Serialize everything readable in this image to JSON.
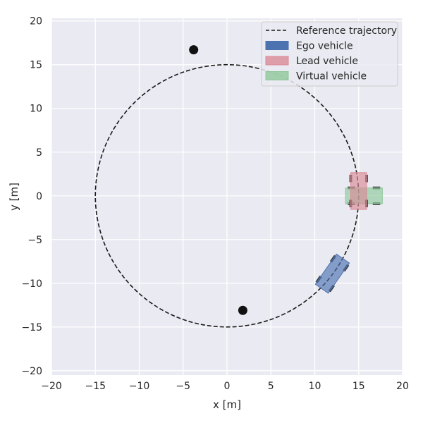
{
  "chart_data": {
    "type": "scatter",
    "title": "",
    "xlabel": "x [m]",
    "ylabel": "y [m]",
    "xlim": [
      -20,
      20
    ],
    "ylim": [
      -20.5,
      20.3
    ],
    "xticks": [
      -20,
      -15,
      -10,
      -5,
      0,
      5,
      10,
      15,
      20
    ],
    "yticks": [
      -20,
      -15,
      -10,
      -5,
      0,
      5,
      10,
      15,
      20
    ],
    "xtick_labels": [
      "−20",
      "−15",
      "−10",
      "−5",
      "0",
      "5",
      "10",
      "15",
      "20"
    ],
    "ytick_labels": [
      "−20",
      "−15",
      "−10",
      "−5",
      "0",
      "5",
      "10",
      "15",
      "20"
    ],
    "grid": true,
    "legend_position": "top-right",
    "legend": [
      {
        "label": "Reference trajectory",
        "kind": "dashed-line",
        "color": "#1a1a1a"
      },
      {
        "label": "Ego vehicle",
        "kind": "patch",
        "color": "#4c72b0"
      },
      {
        "label": "Lead vehicle",
        "kind": "patch",
        "color": "#d98b96"
      },
      {
        "label": "Virtual vehicle",
        "kind": "patch",
        "color": "#8ec89a"
      }
    ],
    "reference_trajectory": {
      "center": [
        0,
        0
      ],
      "radius": 15,
      "color": "#1a1a1a"
    },
    "obstacles": [
      {
        "x": -3.8,
        "y": 16.7
      },
      {
        "x": 1.8,
        "y": -13.1
      }
    ],
    "vehicles": [
      {
        "name": "Virtual vehicle",
        "x": 15.6,
        "y": 0.0,
        "heading_deg": 0,
        "length": 4.2,
        "width": 1.8,
        "color": "#8ec89a"
      },
      {
        "name": "Lead vehicle",
        "x": 15.0,
        "y": 0.55,
        "heading_deg": 90,
        "length": 4.2,
        "width": 1.8,
        "color": "#d98b96"
      },
      {
        "name": "Ego vehicle",
        "x": 12.0,
        "y": -8.9,
        "heading_deg": 55,
        "length": 4.2,
        "width": 1.8,
        "color": "#4c72b0"
      }
    ]
  },
  "colors": {
    "axes_bg": "#eaeaf2",
    "grid": "#ffffff",
    "wheel": "#3a3a3a",
    "obstacle": "#111111"
  }
}
